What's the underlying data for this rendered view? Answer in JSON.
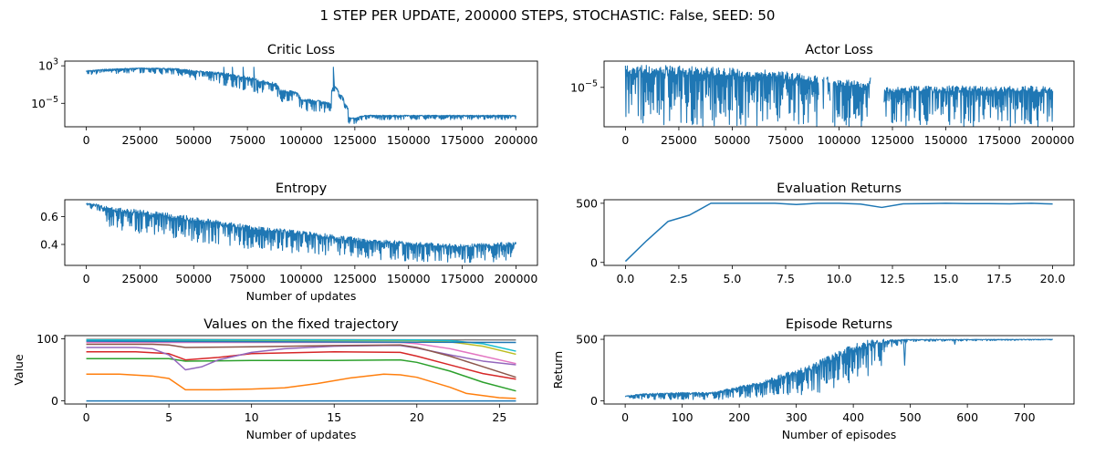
{
  "figure": {
    "suptitle": "1 STEP PER UPDATE, 200000 STEPS, STOCHASTIC: False, SEED: 50"
  },
  "colors": {
    "line": "#1f77b4",
    "tab10": [
      "#1f77b4",
      "#ff7f0e",
      "#2ca02c",
      "#d62728",
      "#9467bd",
      "#8c564b",
      "#e377c2",
      "#7f7f7f",
      "#bcbd22",
      "#17becf"
    ]
  },
  "chart_data": [
    {
      "id": "critic",
      "type": "line",
      "title": "Critic Loss",
      "xlabel": "",
      "ylabel": "",
      "yscale": "log",
      "xlim": [
        -10000,
        210000
      ],
      "ylim": [
        1e-10,
        10000.0
      ],
      "xticks": [
        0,
        25000,
        50000,
        75000,
        100000,
        125000,
        150000,
        175000,
        200000
      ],
      "xtick_labels": [
        "0",
        "25000",
        "50000",
        "75000",
        "100000",
        "125000",
        "150000",
        "175000",
        "200000"
      ],
      "yticks": [
        1000,
        1e-05
      ],
      "ytick_labels": [
        "10^3",
        "10^-5"
      ],
      "noise_band": true,
      "series": [
        {
          "x": [
            0,
            10000,
            25000,
            40000,
            50000,
            60000,
            70000,
            80000,
            90000,
            100000,
            110000,
            114000,
            115500,
            117500,
            120000,
            122000,
            126000,
            130000,
            140000,
            150000,
            175000,
            200000
          ],
          "upper": [
            100,
            200,
            400,
            300,
            100,
            50,
            10,
            1,
            0.01,
            0.0001,
            3e-05,
            1e-05,
            0.05,
            0.001,
            1e-05,
            1e-08,
            1e-08,
            3e-08,
            3e-08,
            3e-08,
            3e-08,
            3e-08
          ],
          "lower": [
            10,
            20,
            30,
            10,
            1,
            0.1,
            0.01,
            0.001,
            1e-05,
            3e-07,
            5e-08,
            5e-08,
            0.005,
            0.0001,
            1e-06,
            2e-10,
            3e-10,
            3e-09,
            3e-09,
            3e-09,
            3e-09,
            3e-09
          ]
        }
      ],
      "spikes": [
        {
          "x": 64000,
          "y": 500
        },
        {
          "x": 68000,
          "y": 500
        },
        {
          "x": 73000,
          "y": 500
        },
        {
          "x": 78000,
          "y": 500
        },
        {
          "x": 115000,
          "y": 500
        }
      ]
    },
    {
      "id": "actor",
      "type": "line",
      "title": "Actor Loss",
      "xlabel": "",
      "ylabel": "",
      "yscale": "log",
      "xlim": [
        -10000,
        210000
      ],
      "ylim": [
        1e-08,
        0.001
      ],
      "xticks": [
        0,
        25000,
        50000,
        75000,
        100000,
        125000,
        150000,
        175000,
        200000
      ],
      "xtick_labels": [
        "0",
        "25000",
        "50000",
        "75000",
        "100000",
        "125000",
        "150000",
        "175000",
        "200000"
      ],
      "yticks": [
        1e-05
      ],
      "ytick_labels": [
        "10^-5"
      ],
      "noise_band": true,
      "series": [
        {
          "x": [
            0,
            10000,
            25000,
            50000,
            75000,
            90000,
            100000,
            110000,
            114000,
            115500,
            117500,
            120000,
            122000,
            130000,
            150000,
            175000,
            200000
          ],
          "upper": [
            0.00045,
            0.0005,
            0.00045,
            0.0003,
            0.00015,
            8e-05,
            4e-05,
            3e-05,
            2e-05,
            0.0001,
            5e-05,
            2e-05,
            1e-05,
            1.3e-05,
            1.3e-05,
            1.3e-05,
            1.2e-05
          ],
          "lower": [
            1e-08,
            1e-08,
            1e-08,
            1e-08,
            1e-08,
            1e-08,
            1e-08,
            1e-08,
            1e-08,
            6e-05,
            2e-05,
            1e-08,
            1e-08,
            1e-08,
            1e-08,
            1e-08,
            1e-08
          ]
        }
      ],
      "gaps": [
        [
          90500,
          92000
        ],
        [
          93000,
          94000
        ],
        [
          96000,
          97000
        ],
        [
          115000,
          121000
        ]
      ]
    },
    {
      "id": "entropy",
      "type": "line",
      "title": "Entropy",
      "xlabel": "Number of updates",
      "ylabel": "",
      "yscale": "linear",
      "xlim": [
        -10000,
        210000
      ],
      "ylim": [
        0.25,
        0.72
      ],
      "xticks": [
        0,
        25000,
        50000,
        75000,
        100000,
        125000,
        150000,
        175000,
        200000
      ],
      "xtick_labels": [
        "0",
        "25000",
        "50000",
        "75000",
        "100000",
        "125000",
        "150000",
        "175000",
        "200000"
      ],
      "yticks": [
        0.4,
        0.6
      ],
      "ytick_labels": [
        "0.4",
        "0.6"
      ],
      "noise_band": true,
      "series": [
        {
          "x": [
            0,
            5000,
            10000,
            25000,
            50000,
            75000,
            100000,
            125000,
            150000,
            175000,
            200000
          ],
          "upper": [
            0.695,
            0.69,
            0.67,
            0.65,
            0.6,
            0.54,
            0.5,
            0.45,
            0.42,
            0.4,
            0.42
          ],
          "lower": [
            0.68,
            0.63,
            0.52,
            0.48,
            0.42,
            0.37,
            0.33,
            0.3,
            0.28,
            0.27,
            0.27
          ]
        }
      ]
    },
    {
      "id": "eval",
      "type": "line",
      "title": "Evaluation Returns",
      "xlabel": "",
      "ylabel": "",
      "yscale": "linear",
      "xlim": [
        -1,
        21
      ],
      "ylim": [
        -25,
        530
      ],
      "xticks": [
        0,
        2.5,
        5,
        7.5,
        10,
        12.5,
        15,
        17.5,
        20
      ],
      "xtick_labels": [
        "0.0",
        "2.5",
        "5.0",
        "7.5",
        "10.0",
        "12.5",
        "15.0",
        "17.5",
        "20.0"
      ],
      "yticks": [
        0,
        500
      ],
      "ytick_labels": [
        "0",
        "500"
      ],
      "series": [
        {
          "x": [
            0,
            1,
            2,
            3,
            4,
            5,
            6,
            7,
            8,
            9,
            10,
            11,
            12,
            13,
            14,
            15,
            16,
            17,
            18,
            19,
            20
          ],
          "y": [
            9,
            185,
            347,
            400,
            500,
            500,
            500,
            500,
            490,
            500,
            500,
            493,
            465,
            495,
            497,
            500,
            497,
            497,
            495,
            500,
            494
          ]
        }
      ]
    },
    {
      "id": "values",
      "type": "line",
      "title": "Values on the fixed trajectory",
      "xlabel": "Number of updates",
      "ylabel": "Value",
      "yscale": "linear",
      "xlim": [
        -1.3,
        27.3
      ],
      "ylim": [
        -5,
        105
      ],
      "xticks": [
        0,
        5,
        10,
        15,
        20,
        25
      ],
      "xtick_labels": [
        "0",
        "5",
        "10",
        "15",
        "20",
        "25"
      ],
      "yticks": [
        0,
        100
      ],
      "ytick_labels": [
        "0",
        "100"
      ],
      "series": [
        {
          "x": [
            0,
            26
          ],
          "y": [
            0,
            0
          ],
          "color_index": 0
        },
        {
          "x": [
            0,
            2,
            4,
            5,
            6,
            8,
            10,
            12,
            14,
            16,
            18,
            19,
            20,
            22,
            23,
            25,
            26
          ],
          "y": [
            43,
            43,
            40,
            36,
            18,
            18,
            19,
            21,
            28,
            37,
            43,
            42,
            38,
            22,
            12,
            5,
            4
          ],
          "color_index": 1
        },
        {
          "x": [
            0,
            5,
            6,
            10,
            15,
            19,
            20,
            22,
            24,
            26
          ],
          "y": [
            68,
            68,
            64,
            65,
            65,
            66,
            62,
            48,
            30,
            16
          ],
          "color_index": 2
        },
        {
          "x": [
            0,
            3,
            5,
            6,
            8,
            10,
            15,
            19,
            20,
            22,
            24,
            26
          ],
          "y": [
            79,
            79,
            76,
            66,
            70,
            76,
            79,
            78,
            72,
            58,
            44,
            35
          ],
          "color_index": 3
        },
        {
          "x": [
            0,
            3,
            4,
            5,
            6,
            7,
            8,
            10,
            12,
            15,
            18,
            19,
            20,
            22,
            24,
            26
          ],
          "y": [
            86,
            86,
            84,
            74,
            50,
            55,
            66,
            78,
            84,
            88,
            89,
            89,
            85,
            74,
            64,
            58
          ],
          "color_index": 4
        },
        {
          "x": [
            0,
            4,
            5,
            6,
            10,
            15,
            19,
            20,
            22,
            24,
            26
          ],
          "y": [
            91,
            91,
            90,
            86,
            87,
            89,
            90,
            86,
            72,
            55,
            38
          ],
          "color_index": 5
        },
        {
          "x": [
            0,
            5,
            10,
            15,
            19,
            20,
            22,
            24,
            26
          ],
          "y": [
            94,
            94,
            94,
            94,
            94,
            92,
            84,
            72,
            60
          ],
          "color_index": 6
        },
        {
          "x": [
            0,
            26
          ],
          "y": [
            99,
            98
          ],
          "color_index": 7
        },
        {
          "x": [
            0,
            19,
            20,
            22,
            24,
            26
          ],
          "y": [
            97,
            97,
            97,
            95,
            88,
            75
          ],
          "color_index": 8
        },
        {
          "x": [
            0,
            19,
            20,
            22,
            24,
            26
          ],
          "y": [
            98,
            98,
            98,
            97,
            92,
            80
          ],
          "color_index": 9
        },
        {
          "x": [
            0,
            26
          ],
          "y": [
            96,
            94
          ],
          "color_index": 0
        }
      ]
    },
    {
      "id": "episodes",
      "type": "line",
      "title": "Episode Returns",
      "xlabel": "Number of episodes",
      "ylabel": "Return",
      "yscale": "linear",
      "xlim": [
        -37,
        787
      ],
      "ylim": [
        -25,
        530
      ],
      "xticks": [
        0,
        100,
        200,
        300,
        400,
        500,
        600,
        700
      ],
      "xtick_labels": [
        "0",
        "100",
        "200",
        "300",
        "400",
        "500",
        "600",
        "700"
      ],
      "yticks": [
        0,
        500
      ],
      "ytick_labels": [
        "0",
        "500"
      ],
      "noise_band": true,
      "series": [
        {
          "x": [
            0,
            30,
            100,
            150,
            200,
            240,
            280,
            320,
            360,
            400,
            430,
            450,
            460,
            500,
            750
          ],
          "upper": [
            40,
            60,
            70,
            70,
            120,
            160,
            230,
            280,
            380,
            470,
            500,
            500,
            500,
            500,
            500
          ],
          "lower": [
            10,
            10,
            10,
            10,
            15,
            20,
            30,
            50,
            80,
            150,
            200,
            250,
            420,
            480,
            495
          ]
        }
      ],
      "dips": [
        {
          "x": 490,
          "y": 290
        },
        {
          "x": 578,
          "y": 460
        }
      ]
    }
  ]
}
